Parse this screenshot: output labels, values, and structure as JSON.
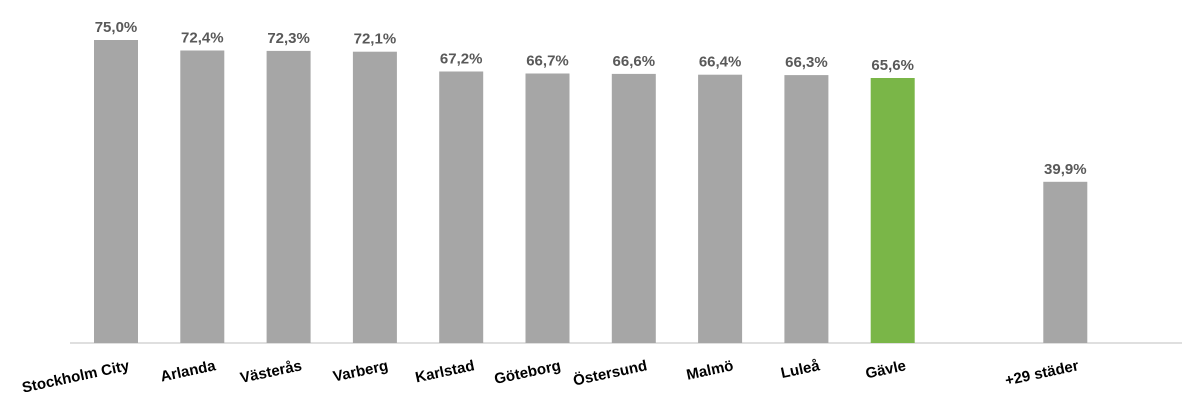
{
  "chart_data": {
    "type": "bar",
    "categories": [
      "Stockholm City",
      "Arlanda",
      "Västerås",
      "Varberg",
      "Karlstad",
      "Göteborg",
      "Östersund",
      "Malmö",
      "Luleå",
      "Gävle",
      "",
      "+29 städer"
    ],
    "values": [
      75.0,
      72.4,
      72.3,
      72.1,
      67.2,
      66.7,
      66.6,
      66.4,
      66.3,
      65.6,
      null,
      39.9
    ],
    "value_labels": [
      "75,0%",
      "72,4%",
      "72,3%",
      "72,1%",
      "67,2%",
      "66,7%",
      "66,6%",
      "66,4%",
      "66,3%",
      "65,6%",
      "",
      "39,9%"
    ],
    "highlight": "Gävle",
    "colors": {
      "bar": "#a6a6a6",
      "highlight": "#7ab648",
      "axis": "#bfbfbf",
      "value_text": "#595959",
      "category_text": "#000000"
    },
    "title": "",
    "xlabel": "",
    "ylabel": "",
    "ylim": [
      0,
      75
    ],
    "grid": false,
    "legend": "none"
  }
}
